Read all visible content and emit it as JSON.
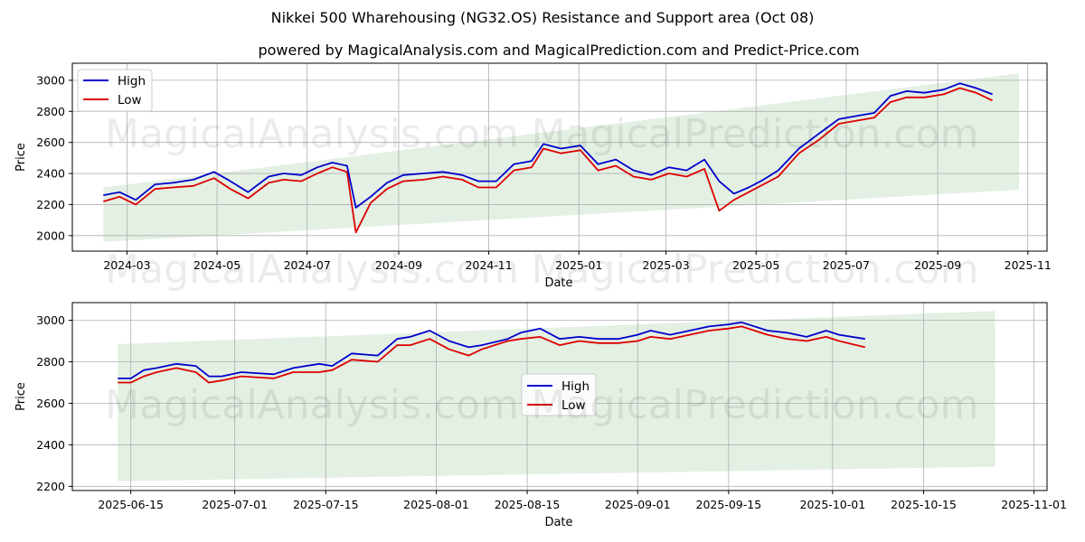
{
  "page": {
    "title": "Nikkei 500 Wharehousing (NG32.OS) Resistance and Support area (Oct 08)",
    "subtitle": "powered by MagicalAnalysis.com and MagicalPrediction.com and Predict-Price.com",
    "watermark_left": "MagicalAnalysis.com",
    "watermark_right": "MagicalPrediction.com"
  },
  "colors": {
    "high": "#0000cc",
    "low": "#dd0000",
    "band": "#d9ebd9",
    "grid": "#b0b0b0"
  },
  "chart_data": [
    {
      "type": "line",
      "xlabel": "Date",
      "ylabel": "Price",
      "xlim": [
        "2024-01-24",
        "2025-11-14"
      ],
      "ylim": [
        1900,
        3110
      ],
      "x_ticks": [
        "2024-03",
        "2024-05",
        "2024-07",
        "2024-09",
        "2024-11",
        "2025-01",
        "2025-03",
        "2025-05",
        "2025-07",
        "2025-09",
        "2025-11"
      ],
      "x_tick_dates": [
        "2024-03-01",
        "2024-05-01",
        "2024-07-01",
        "2024-09-01",
        "2024-11-01",
        "2025-01-01",
        "2025-03-01",
        "2025-05-01",
        "2025-07-01",
        "2025-09-01",
        "2025-11-01"
      ],
      "y_ticks": [
        2000,
        2200,
        2400,
        2600,
        2800,
        3000
      ],
      "grid": true,
      "legend": {
        "position": "top-left",
        "entries": [
          "High",
          "Low"
        ]
      },
      "band": {
        "start": {
          "date": "2024-02-14",
          "upper": 2310,
          "lower": 1960
        },
        "end": {
          "date": "2025-10-26",
          "upper": 3045,
          "lower": 2295
        }
      },
      "series": [
        {
          "name": "High",
          "x": [
            "2024-02-14",
            "2024-02-25",
            "2024-03-07",
            "2024-03-20",
            "2024-04-01",
            "2024-04-15",
            "2024-04-29",
            "2024-05-10",
            "2024-05-22",
            "2024-06-05",
            "2024-06-15",
            "2024-06-27",
            "2024-07-08",
            "2024-07-18",
            "2024-07-28",
            "2024-08-03",
            "2024-08-13",
            "2024-08-24",
            "2024-09-04",
            "2024-09-18",
            "2024-10-01",
            "2024-10-14",
            "2024-10-25",
            "2024-11-06",
            "2024-11-18",
            "2024-11-30",
            "2024-12-08",
            "2024-12-20",
            "2025-01-02",
            "2025-01-14",
            "2025-01-26",
            "2025-02-07",
            "2025-02-19",
            "2025-03-03",
            "2025-03-15",
            "2025-03-27",
            "2025-04-06",
            "2025-04-16",
            "2025-04-26",
            "2025-05-06",
            "2025-05-16",
            "2025-05-30",
            "2025-06-13",
            "2025-06-26",
            "2025-07-08",
            "2025-07-20",
            "2025-07-31",
            "2025-08-11",
            "2025-08-23",
            "2025-09-05",
            "2025-09-16",
            "2025-09-27",
            "2025-10-08"
          ],
          "values": [
            2260,
            2280,
            2230,
            2330,
            2340,
            2360,
            2410,
            2350,
            2280,
            2380,
            2400,
            2390,
            2440,
            2470,
            2450,
            2180,
            2250,
            2340,
            2390,
            2400,
            2410,
            2390,
            2350,
            2350,
            2460,
            2480,
            2590,
            2560,
            2580,
            2460,
            2490,
            2420,
            2390,
            2440,
            2420,
            2490,
            2350,
            2270,
            2310,
            2360,
            2420,
            2560,
            2660,
            2750,
            2770,
            2790,
            2900,
            2930,
            2920,
            2940,
            2980,
            2950,
            2910
          ]
        },
        {
          "name": "Low",
          "x": [
            "2024-02-14",
            "2024-02-25",
            "2024-03-07",
            "2024-03-20",
            "2024-04-01",
            "2024-04-15",
            "2024-04-29",
            "2024-05-10",
            "2024-05-22",
            "2024-06-05",
            "2024-06-15",
            "2024-06-27",
            "2024-07-08",
            "2024-07-18",
            "2024-07-28",
            "2024-08-03",
            "2024-08-13",
            "2024-08-24",
            "2024-09-04",
            "2024-09-18",
            "2024-10-01",
            "2024-10-14",
            "2024-10-25",
            "2024-11-06",
            "2024-11-18",
            "2024-11-30",
            "2024-12-08",
            "2024-12-20",
            "2025-01-02",
            "2025-01-14",
            "2025-01-26",
            "2025-02-07",
            "2025-02-19",
            "2025-03-03",
            "2025-03-15",
            "2025-03-27",
            "2025-04-06",
            "2025-04-16",
            "2025-04-26",
            "2025-05-06",
            "2025-05-16",
            "2025-05-30",
            "2025-06-13",
            "2025-06-26",
            "2025-07-08",
            "2025-07-20",
            "2025-07-31",
            "2025-08-11",
            "2025-08-23",
            "2025-09-05",
            "2025-09-16",
            "2025-09-27",
            "2025-10-08"
          ],
          "values": [
            2220,
            2250,
            2200,
            2300,
            2310,
            2320,
            2370,
            2300,
            2240,
            2340,
            2360,
            2350,
            2400,
            2440,
            2410,
            2020,
            2210,
            2300,
            2350,
            2360,
            2380,
            2360,
            2310,
            2310,
            2420,
            2440,
            2560,
            2530,
            2550,
            2420,
            2450,
            2380,
            2360,
            2400,
            2380,
            2430,
            2160,
            2230,
            2280,
            2330,
            2380,
            2530,
            2620,
            2720,
            2740,
            2760,
            2860,
            2890,
            2890,
            2910,
            2950,
            2920,
            2870
          ]
        }
      ]
    },
    {
      "type": "line",
      "xlabel": "Date",
      "ylabel": "Price",
      "xlim": [
        "2025-06-06",
        "2025-11-03"
      ],
      "ylim": [
        2180,
        3085
      ],
      "x_ticks": [
        "2025-06-15",
        "2025-07-01",
        "2025-07-15",
        "2025-08-01",
        "2025-08-15",
        "2025-09-01",
        "2025-09-15",
        "2025-10-01",
        "2025-10-15",
        "2025-11-01"
      ],
      "y_ticks": [
        2200,
        2400,
        2600,
        2800,
        3000
      ],
      "grid": true,
      "legend": {
        "position": "center",
        "entries": [
          "High",
          "Low"
        ]
      },
      "band": {
        "start": {
          "date": "2025-06-13",
          "upper": 2885,
          "lower": 2225
        },
        "end": {
          "date": "2025-10-26",
          "upper": 3045,
          "lower": 2295
        }
      },
      "series": [
        {
          "name": "High",
          "x": [
            "2025-06-13",
            "2025-06-15",
            "2025-06-17",
            "2025-06-19",
            "2025-06-22",
            "2025-06-25",
            "2025-06-27",
            "2025-06-29",
            "2025-07-02",
            "2025-07-07",
            "2025-07-10",
            "2025-07-14",
            "2025-07-16",
            "2025-07-19",
            "2025-07-23",
            "2025-07-26",
            "2025-07-28",
            "2025-07-31",
            "2025-08-03",
            "2025-08-06",
            "2025-08-08",
            "2025-08-12",
            "2025-08-14",
            "2025-08-17",
            "2025-08-20",
            "2025-08-23",
            "2025-08-26",
            "2025-08-29",
            "2025-09-01",
            "2025-09-03",
            "2025-09-06",
            "2025-09-09",
            "2025-09-12",
            "2025-09-15",
            "2025-09-17",
            "2025-09-21",
            "2025-09-24",
            "2025-09-27",
            "2025-09-30",
            "2025-10-02",
            "2025-10-06"
          ],
          "values": [
            2720,
            2720,
            2760,
            2770,
            2790,
            2780,
            2730,
            2730,
            2750,
            2740,
            2770,
            2790,
            2780,
            2840,
            2830,
            2910,
            2920,
            2950,
            2900,
            2870,
            2880,
            2910,
            2940,
            2960,
            2910,
            2920,
            2910,
            2910,
            2930,
            2950,
            2930,
            2950,
            2970,
            2980,
            2990,
            2950,
            2940,
            2920,
            2950,
            2930,
            2910
          ]
        },
        {
          "name": "Low",
          "x": [
            "2025-06-13",
            "2025-06-15",
            "2025-06-17",
            "2025-06-19",
            "2025-06-22",
            "2025-06-25",
            "2025-06-27",
            "2025-06-29",
            "2025-07-02",
            "2025-07-07",
            "2025-07-10",
            "2025-07-14",
            "2025-07-16",
            "2025-07-19",
            "2025-07-23",
            "2025-07-26",
            "2025-07-28",
            "2025-07-31",
            "2025-08-03",
            "2025-08-06",
            "2025-08-08",
            "2025-08-12",
            "2025-08-14",
            "2025-08-17",
            "2025-08-20",
            "2025-08-23",
            "2025-08-26",
            "2025-08-29",
            "2025-09-01",
            "2025-09-03",
            "2025-09-06",
            "2025-09-09",
            "2025-09-12",
            "2025-09-15",
            "2025-09-17",
            "2025-09-21",
            "2025-09-24",
            "2025-09-27",
            "2025-09-30",
            "2025-10-02",
            "2025-10-06"
          ],
          "values": [
            2700,
            2700,
            2730,
            2750,
            2770,
            2750,
            2700,
            2710,
            2730,
            2720,
            2750,
            2750,
            2760,
            2810,
            2800,
            2880,
            2880,
            2910,
            2860,
            2830,
            2860,
            2900,
            2910,
            2920,
            2880,
            2900,
            2890,
            2890,
            2900,
            2920,
            2910,
            2930,
            2950,
            2960,
            2970,
            2930,
            2910,
            2900,
            2920,
            2900,
            2870
          ]
        }
      ]
    }
  ]
}
